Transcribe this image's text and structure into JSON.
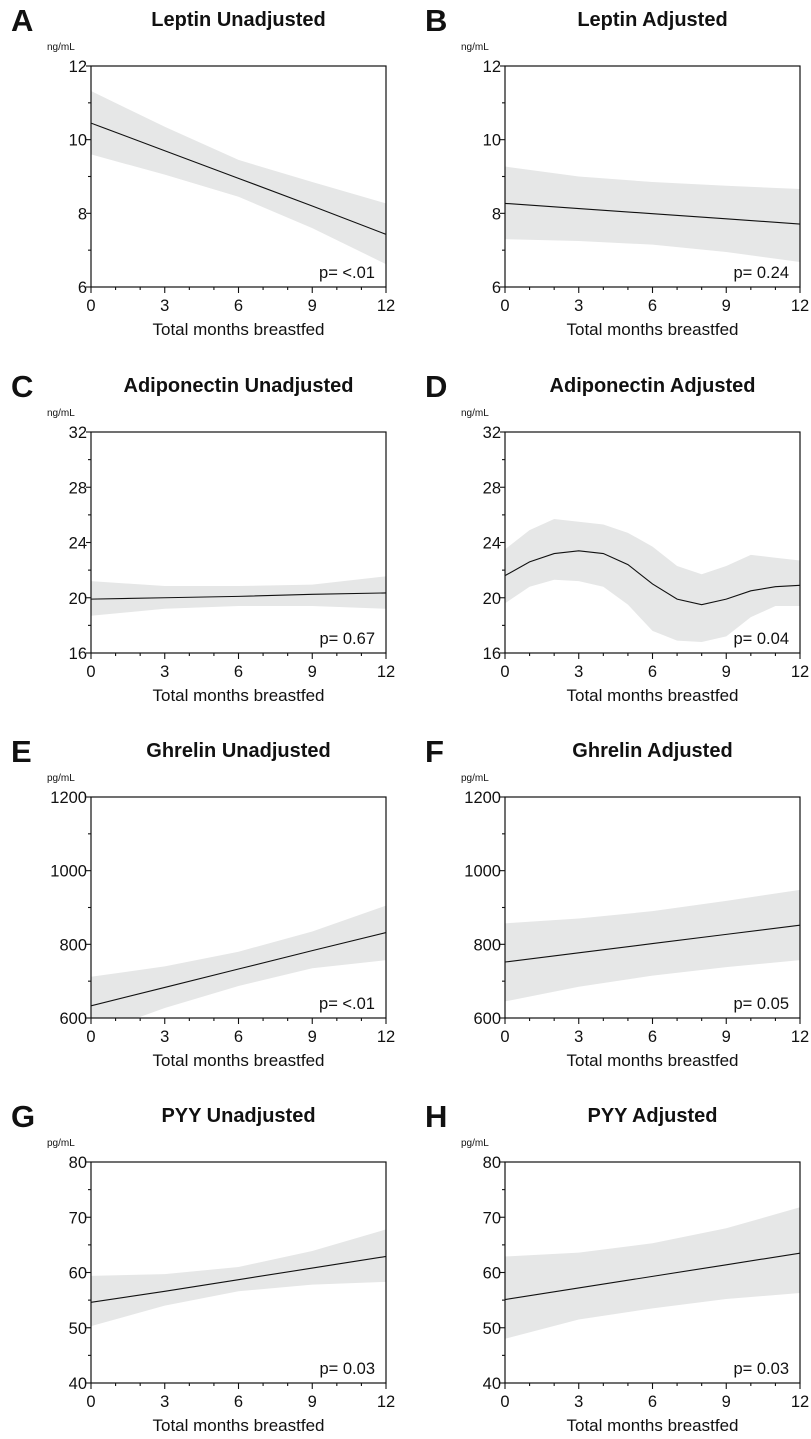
{
  "chart_data": [
    {
      "panel": "A",
      "type": "line",
      "title": "Leptin Unadjusted",
      "unit": "ng/mL",
      "xlabel": "Total months breastfed",
      "xlim": [
        0,
        12
      ],
      "xticks": [
        0,
        3,
        6,
        9,
        12
      ],
      "ylim": [
        6,
        12
      ],
      "yticks": [
        6,
        8,
        10,
        12
      ],
      "p_text": "p= <.01",
      "x": [
        0,
        3,
        6,
        9,
        12
      ],
      "y": [
        10.45,
        9.7,
        8.95,
        8.2,
        7.43
      ],
      "lower": [
        9.6,
        9.05,
        8.45,
        7.6,
        6.62
      ],
      "upper": [
        11.32,
        10.35,
        9.45,
        8.85,
        8.27
      ]
    },
    {
      "panel": "B",
      "type": "line",
      "title": "Leptin Adjusted",
      "unit": "ng/mL",
      "xlabel": "Total months breastfed",
      "xlim": [
        0,
        12
      ],
      "xticks": [
        0,
        3,
        6,
        9,
        12
      ],
      "ylim": [
        6,
        12
      ],
      "yticks": [
        6,
        8,
        10,
        12
      ],
      "p_text": "p= 0.24",
      "x": [
        0,
        3,
        6,
        9,
        12
      ],
      "y": [
        8.27,
        8.13,
        7.99,
        7.85,
        7.71
      ],
      "lower": [
        7.3,
        7.25,
        7.15,
        6.95,
        6.68
      ],
      "upper": [
        9.27,
        9.0,
        8.85,
        8.75,
        8.66
      ]
    },
    {
      "panel": "C",
      "type": "line",
      "title": "Adiponectin Unadjusted",
      "unit": "ng/mL",
      "xlabel": "Total months breastfed",
      "xlim": [
        0,
        12
      ],
      "xticks": [
        0,
        3,
        6,
        9,
        12
      ],
      "ylim": [
        16,
        32
      ],
      "yticks": [
        16,
        20,
        24,
        28,
        32
      ],
      "p_text": "p= 0.67",
      "x": [
        0,
        3,
        6,
        9,
        12
      ],
      "y": [
        19.9,
        20.0,
        20.1,
        20.25,
        20.35
      ],
      "lower": [
        18.7,
        19.2,
        19.4,
        19.4,
        19.2
      ],
      "upper": [
        21.2,
        20.85,
        20.85,
        20.95,
        21.55
      ]
    },
    {
      "panel": "D",
      "type": "line",
      "title": "Adiponectin Adjusted",
      "unit": "ng/mL",
      "xlabel": "Total months breastfed",
      "xlim": [
        0,
        12
      ],
      "xticks": [
        0,
        3,
        6,
        9,
        12
      ],
      "ylim": [
        16,
        32
      ],
      "yticks": [
        16,
        20,
        24,
        28,
        32
      ],
      "p_text": "p= 0.04",
      "x": [
        0,
        1,
        2,
        3,
        4,
        5,
        6,
        7,
        8,
        9,
        10,
        11,
        12
      ],
      "y": [
        21.6,
        22.6,
        23.2,
        23.4,
        23.2,
        22.4,
        21.0,
        19.9,
        19.5,
        19.9,
        20.5,
        20.8,
        20.9
      ],
      "lower": [
        19.6,
        20.8,
        21.3,
        21.2,
        20.8,
        19.5,
        17.6,
        16.9,
        16.8,
        17.2,
        18.6,
        19.4,
        19.4
      ],
      "upper": [
        23.5,
        24.9,
        25.7,
        25.5,
        25.3,
        24.7,
        23.7,
        22.3,
        21.7,
        22.3,
        23.1,
        22.9,
        22.7
      ]
    },
    {
      "panel": "E",
      "type": "line",
      "title": "Ghrelin Unadjusted",
      "unit": "pg/mL",
      "xlabel": "Total months breastfed",
      "xlim": [
        0,
        12
      ],
      "xticks": [
        0,
        3,
        6,
        9,
        12
      ],
      "ylim": [
        600,
        1200
      ],
      "yticks": [
        600,
        800,
        1000,
        1200
      ],
      "p_text": "p= <.01",
      "x": [
        0,
        3,
        6,
        9,
        12
      ],
      "y": [
        633,
        683,
        733,
        783,
        832
      ],
      "lower": [
        555,
        627,
        687,
        735,
        757
      ],
      "upper": [
        712,
        740,
        780,
        835,
        905
      ]
    },
    {
      "panel": "F",
      "type": "line",
      "title": "Ghrelin Adjusted",
      "unit": "pg/mL",
      "xlabel": "Total months breastfed",
      "xlim": [
        0,
        12
      ],
      "xticks": [
        0,
        3,
        6,
        9,
        12
      ],
      "ylim": [
        600,
        1200
      ],
      "yticks": [
        600,
        800,
        1000,
        1200
      ],
      "p_text": "p= 0.05",
      "x": [
        0,
        3,
        6,
        9,
        12
      ],
      "y": [
        752,
        777,
        802,
        827,
        852
      ],
      "lower": [
        645,
        685,
        715,
        738,
        757
      ],
      "upper": [
        857,
        870,
        890,
        918,
        948
      ]
    },
    {
      "panel": "G",
      "type": "line",
      "title": "PYY Unadjusted",
      "unit": "pg/mL",
      "xlabel": "Total months breastfed",
      "xlim": [
        0,
        12
      ],
      "xticks": [
        0,
        3,
        6,
        9,
        12
      ],
      "ylim": [
        40,
        80
      ],
      "yticks": [
        40,
        50,
        60,
        70,
        80
      ],
      "p_text": "p= 0.03",
      "x": [
        0,
        3,
        6,
        9,
        12
      ],
      "y": [
        54.6,
        56.6,
        58.7,
        60.8,
        62.9
      ],
      "lower": [
        50.3,
        54.0,
        56.6,
        57.8,
        58.3
      ],
      "upper": [
        59.4,
        59.7,
        61.0,
        63.9,
        67.8
      ]
    },
    {
      "panel": "H",
      "type": "line",
      "title": "PYY Adjusted",
      "unit": "pg/mL",
      "xlabel": "Total months breastfed",
      "xlim": [
        0,
        12
      ],
      "xticks": [
        0,
        3,
        6,
        9,
        12
      ],
      "ylim": [
        40,
        80
      ],
      "yticks": [
        40,
        50,
        60,
        70,
        80
      ],
      "p_text": "p= 0.03",
      "x": [
        0,
        3,
        6,
        9,
        12
      ],
      "y": [
        55.1,
        57.2,
        59.3,
        61.4,
        63.5
      ],
      "lower": [
        48.0,
        51.5,
        53.5,
        55.2,
        56.3
      ],
      "upper": [
        62.9,
        63.6,
        65.3,
        68.0,
        71.8
      ]
    }
  ],
  "colors": {
    "band": "#e6e7e7",
    "line": "#111111",
    "axes": "#111111"
  }
}
